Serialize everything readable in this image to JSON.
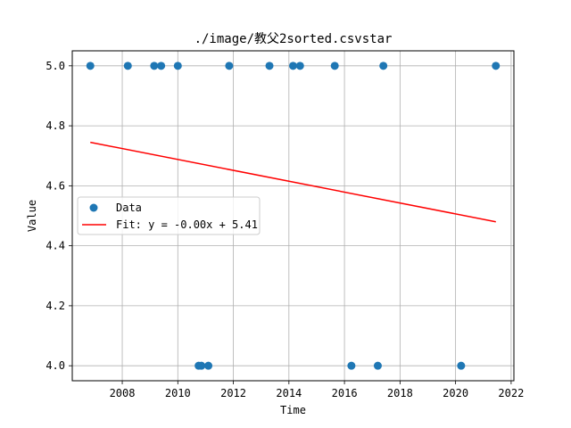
{
  "chart_data": {
    "type": "scatter",
    "title": "./image/教父2sorted.csvstar",
    "xlabel": "Time",
    "ylabel": "Value",
    "xlim": [
      2006.2,
      2022.1
    ],
    "ylim": [
      3.95,
      5.05
    ],
    "xticks": [
      2008,
      2010,
      2012,
      2014,
      2016,
      2018,
      2020,
      2022
    ],
    "xtick_labels": [
      "2008",
      "2010",
      "2012",
      "2014",
      "2016",
      "2018",
      "2020",
      "2022"
    ],
    "yticks": [
      4.0,
      4.2,
      4.4,
      4.6,
      4.8,
      5.0
    ],
    "ytick_labels": [
      "4.0",
      "4.2",
      "4.4",
      "4.6",
      "4.8",
      "5.0"
    ],
    "grid": true,
    "legend_placement": "center-left",
    "series": [
      {
        "name": "Data",
        "kind": "scatter",
        "color": "#1f77b4",
        "points": [
          {
            "x": 2006.85,
            "y": 5.0
          },
          {
            "x": 2008.2,
            "y": 5.0
          },
          {
            "x": 2009.15,
            "y": 5.0
          },
          {
            "x": 2009.4,
            "y": 5.0
          },
          {
            "x": 2010.0,
            "y": 5.0
          },
          {
            "x": 2010.75,
            "y": 4.0
          },
          {
            "x": 2010.85,
            "y": 4.0
          },
          {
            "x": 2011.1,
            "y": 4.0
          },
          {
            "x": 2011.85,
            "y": 5.0
          },
          {
            "x": 2013.3,
            "y": 5.0
          },
          {
            "x": 2014.15,
            "y": 5.0
          },
          {
            "x": 2014.4,
            "y": 5.0
          },
          {
            "x": 2015.65,
            "y": 5.0
          },
          {
            "x": 2016.25,
            "y": 4.0
          },
          {
            "x": 2017.2,
            "y": 4.0
          },
          {
            "x": 2017.4,
            "y": 5.0
          },
          {
            "x": 2020.2,
            "y": 4.0
          },
          {
            "x": 2021.45,
            "y": 5.0
          }
        ]
      },
      {
        "name": "Fit: y = -0.00x + 5.41",
        "kind": "line",
        "color": "#ff0000",
        "points": [
          {
            "x": 2006.85,
            "y": 4.745
          },
          {
            "x": 2021.45,
            "y": 4.48
          }
        ]
      }
    ]
  }
}
